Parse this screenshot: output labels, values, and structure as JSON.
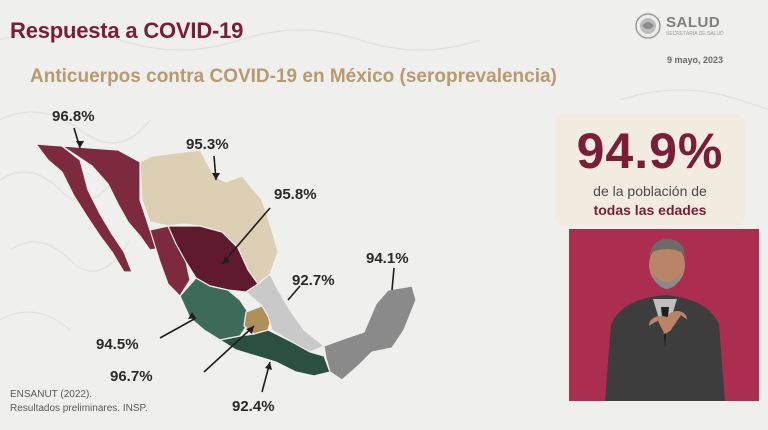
{
  "header": {
    "title": "Respuesta a COVID-19",
    "subtitle": "Anticuerpos contra COVID-19 en México (seroprevalencia)",
    "date": "9 mayo, 2023",
    "logo_text": "SALUD",
    "logo_subtext": "SECRETARÍA DE SALUD"
  },
  "stat": {
    "value": "94.9%",
    "line1": "de la población de",
    "line2": "todas las edades"
  },
  "region_labels": {
    "northwest": "96.8%",
    "northeast": "95.3%",
    "north_central": "95.8%",
    "central_east": "92.7%",
    "west": "94.5%",
    "central_south": "96.7%",
    "south": "92.4%",
    "southeast": "94.1%"
  },
  "colors": {
    "northwest": "#7e2a3e",
    "northeast": "#dccfb4",
    "north_central": "#5f1a2e",
    "central_east": "#c9c9c9",
    "west": "#3e6b58",
    "central_south": "#b08f5a",
    "south": "#2b4f41",
    "southeast": "#8a8a8a",
    "title": "#7a1d37",
    "subtitle": "#b99a6e"
  },
  "source": {
    "line1": "ENSANUT (2022).",
    "line2": "Resultados preliminares. INSP."
  }
}
